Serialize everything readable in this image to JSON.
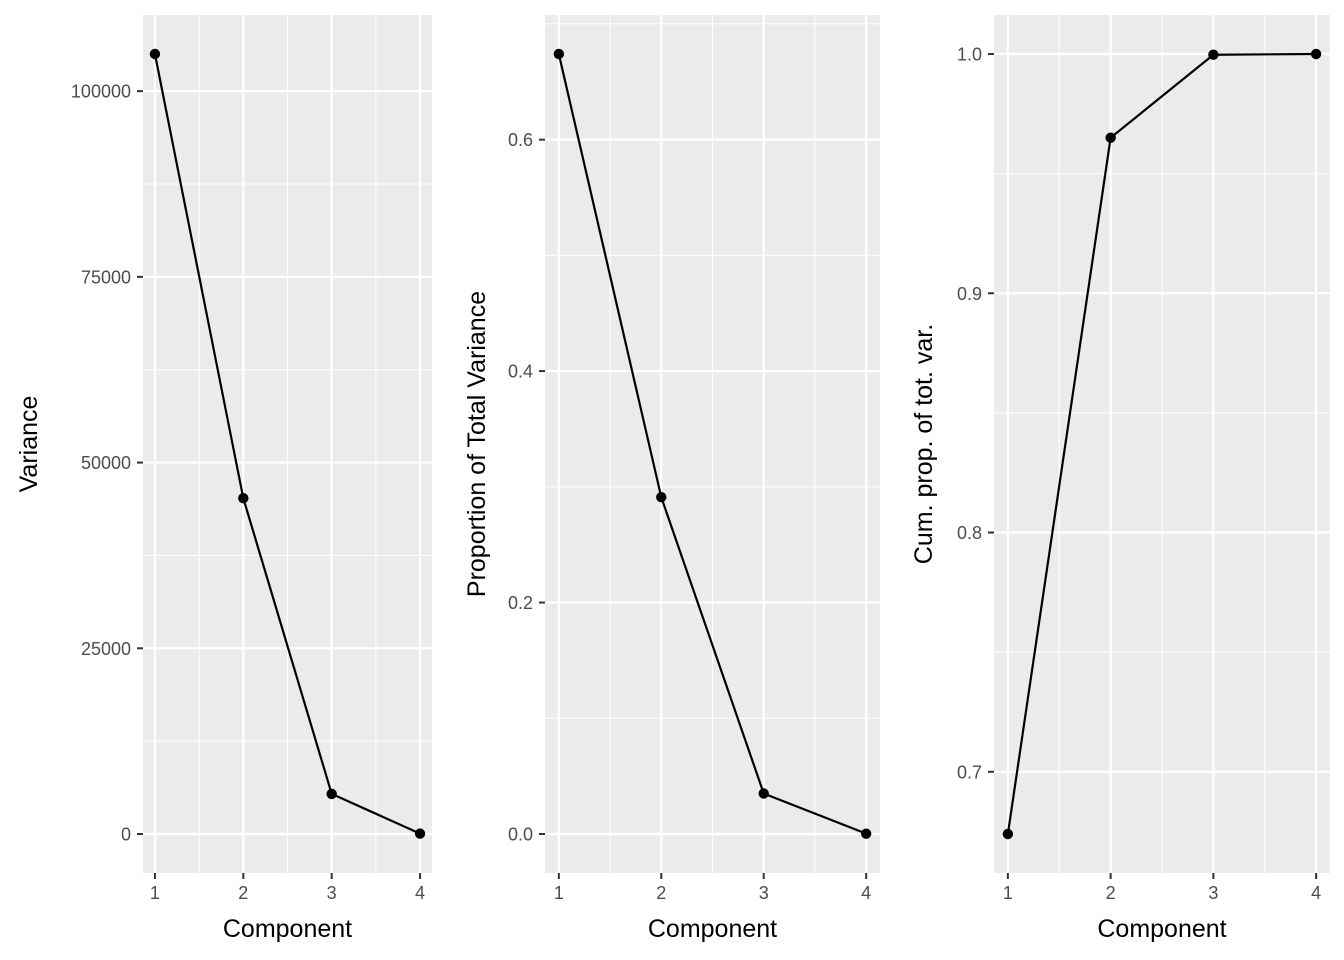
{
  "chart_data": [
    {
      "type": "line",
      "x": [
        1,
        2,
        3,
        4
      ],
      "y": [
        105000,
        45200,
        5400,
        50
      ],
      "xlabel": "Component",
      "ylabel": "Variance",
      "xlim": [
        0.865,
        4.135
      ],
      "ylim": [
        -5250,
        110250
      ],
      "x_ticks": [
        "1",
        "2",
        "3",
        "4"
      ],
      "y_ticks": [
        0,
        25000,
        50000,
        75000,
        100000
      ],
      "y_tick_labels": [
        "0",
        "25000",
        "50000",
        "75000",
        "100000"
      ],
      "grid": true,
      "markers": true
    },
    {
      "type": "line",
      "x": [
        1,
        2,
        3,
        4
      ],
      "y": [
        0.674,
        0.291,
        0.035,
        0.0003
      ],
      "xlabel": "Component",
      "ylabel": "Proportion of Total Variance",
      "xlim": [
        0.865,
        4.135
      ],
      "ylim": [
        -0.0337,
        0.7077
      ],
      "x_ticks": [
        "1",
        "2",
        "3",
        "4"
      ],
      "y_ticks": [
        0.0,
        0.2,
        0.4,
        0.6
      ],
      "y_tick_labels": [
        "0.0",
        "0.2",
        "0.4",
        "0.6"
      ],
      "grid": true,
      "markers": true
    },
    {
      "type": "line",
      "x": [
        1,
        2,
        3,
        4
      ],
      "y": [
        0.674,
        0.965,
        0.9997,
        1.0
      ],
      "xlabel": "Component",
      "ylabel": "Cum. prop. of tot. var.",
      "xlim": [
        0.865,
        4.135
      ],
      "ylim": [
        0.6577,
        1.0163
      ],
      "x_ticks": [
        "1",
        "2",
        "3",
        "4"
      ],
      "y_ticks": [
        0.7,
        0.8,
        0.9,
        1.0
      ],
      "y_tick_labels": [
        "0.7",
        "0.8",
        "0.9",
        "1.0"
      ],
      "grid": true,
      "markers": true
    }
  ],
  "colors": {
    "panel_background": "#ebebeb",
    "grid_major": "#ffffff",
    "line": "#000000",
    "tick_text": "#4d4d4d",
    "tick_mark": "#333333"
  }
}
